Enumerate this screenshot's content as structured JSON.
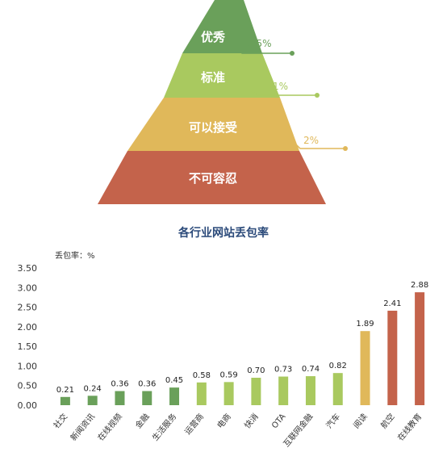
{
  "colors": {
    "green": "#6aa05a",
    "light_green": "#a9c95f",
    "yellow": "#e0b85a",
    "red": "#c4634b",
    "title": "#2b4a7a"
  },
  "pyramid": {
    "levels": [
      {
        "label": "优秀",
        "annotation": "0.5%",
        "color": "#6aa05a"
      },
      {
        "label": "标准",
        "annotation": "1%",
        "color": "#a9c95f"
      },
      {
        "label": "可以接受",
        "annotation": "2%",
        "color": "#e0b85a"
      },
      {
        "label": "不可容忍",
        "annotation": "",
        "color": "#c4634b"
      }
    ]
  },
  "chart_data": {
    "type": "bar",
    "title": "各行业网站丢包率",
    "ylabel": "丢包率：%",
    "xlabel": "",
    "ylim": [
      0,
      3.5
    ],
    "yticks": [
      "0.00",
      "0.50",
      "1.00",
      "1.50",
      "2.00",
      "2.50",
      "3.00",
      "3.50"
    ],
    "grid": false,
    "categories": [
      "社交",
      "新闻资讯",
      "在线视频",
      "金融",
      "生活服务",
      "运营商",
      "电商",
      "快消",
      "OTA",
      "互联网金融",
      "汽车",
      "阅读",
      "航空",
      "在线教育"
    ],
    "values": [
      0.21,
      0.24,
      0.36,
      0.36,
      0.45,
      0.58,
      0.59,
      0.7,
      0.73,
      0.74,
      0.82,
      1.89,
      2.41,
      2.88
    ],
    "value_labels": [
      "0.21",
      "0.24",
      "0.36",
      "0.36",
      "0.45",
      "0.58",
      "0.59",
      "0.70",
      "0.73",
      "0.74",
      "0.82",
      "1.89",
      "2.41",
      "2.88"
    ],
    "bar_colors": [
      "#6aa05a",
      "#6aa05a",
      "#6aa05a",
      "#6aa05a",
      "#6aa05a",
      "#a9c95f",
      "#a9c95f",
      "#a9c95f",
      "#a9c95f",
      "#a9c95f",
      "#a9c95f",
      "#e0b85a",
      "#c4634b",
      "#c4634b"
    ]
  }
}
